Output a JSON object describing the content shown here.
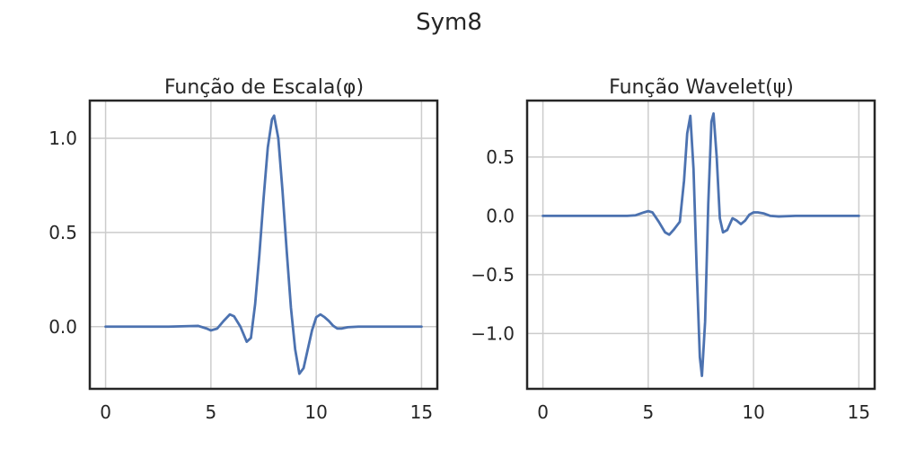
{
  "figure": {
    "title": "Sym8"
  },
  "colors": {
    "series": "#4c72b0",
    "grid": "#cccccc",
    "frame": "#262626"
  },
  "chart_data": [
    {
      "type": "line",
      "title": "Função de Escala(φ)",
      "xlabel": "",
      "ylabel": "",
      "grid": true,
      "xlim": [
        -0.75,
        15.75
      ],
      "ylim": [
        -0.33,
        1.2
      ],
      "xticks": [
        0,
        5,
        10,
        15
      ],
      "xtick_labels": [
        "0",
        "5",
        "10",
        "15"
      ],
      "yticks": [
        0.0,
        0.5,
        1.0
      ],
      "ytick_labels": [
        "0.0",
        "0.5",
        "1.0"
      ],
      "series": [
        {
          "x": [
            0,
            1,
            2,
            3,
            4,
            4.4,
            4.8,
            5.0,
            5.3,
            5.6,
            5.9,
            6.1,
            6.4,
            6.7,
            6.9,
            7.1,
            7.3,
            7.5,
            7.7,
            7.9,
            8.0,
            8.2,
            8.4,
            8.6,
            8.8,
            9.0,
            9.2,
            9.4,
            9.6,
            9.8,
            10.0,
            10.2,
            10.4,
            10.6,
            10.8,
            11.0,
            11.2,
            11.5,
            12,
            13,
            14,
            15
          ],
          "y": [
            0,
            0,
            0,
            0,
            0.003,
            0.004,
            -0.01,
            -0.02,
            -0.01,
            0.03,
            0.065,
            0.055,
            0.0,
            -0.08,
            -0.06,
            0.12,
            0.38,
            0.68,
            0.95,
            1.1,
            1.12,
            1.0,
            0.72,
            0.4,
            0.1,
            -0.12,
            -0.25,
            -0.22,
            -0.12,
            -0.02,
            0.05,
            0.065,
            0.05,
            0.03,
            0.005,
            -0.01,
            -0.01,
            -0.003,
            0,
            0,
            0,
            0
          ]
        }
      ]
    },
    {
      "type": "line",
      "title": "Função Wavelet(ψ)",
      "xlabel": "",
      "ylabel": "",
      "grid": true,
      "xlim": [
        -0.75,
        15.75
      ],
      "ylim": [
        -1.47,
        0.98
      ],
      "xticks": [
        0,
        5,
        10,
        15
      ],
      "xtick_labels": [
        "0",
        "5",
        "10",
        "15"
      ],
      "yticks": [
        -1.0,
        -0.5,
        0.0,
        0.5
      ],
      "ytick_labels": [
        "−1.0",
        "−0.5",
        "0.0",
        "0.5"
      ],
      "series": [
        {
          "x": [
            0,
            1,
            2,
            3,
            4,
            4.4,
            4.8,
            5.0,
            5.2,
            5.5,
            5.8,
            6.0,
            6.2,
            6.5,
            6.7,
            6.85,
            7.0,
            7.15,
            7.3,
            7.45,
            7.55,
            7.7,
            7.85,
            8.0,
            8.1,
            8.25,
            8.4,
            8.55,
            8.75,
            9.0,
            9.2,
            9.4,
            9.6,
            9.8,
            10.0,
            10.2,
            10.5,
            10.8,
            11.2,
            12,
            13,
            14,
            15
          ],
          "y": [
            0,
            0,
            0,
            0,
            0,
            0.005,
            0.03,
            0.04,
            0.03,
            -0.05,
            -0.14,
            -0.16,
            -0.12,
            -0.05,
            0.3,
            0.7,
            0.85,
            0.4,
            -0.45,
            -1.2,
            -1.36,
            -0.9,
            0.1,
            0.8,
            0.87,
            0.5,
            -0.02,
            -0.14,
            -0.12,
            -0.02,
            -0.04,
            -0.07,
            -0.04,
            0.01,
            0.03,
            0.03,
            0.02,
            0.0,
            -0.005,
            0,
            0,
            0,
            0
          ]
        }
      ]
    }
  ]
}
